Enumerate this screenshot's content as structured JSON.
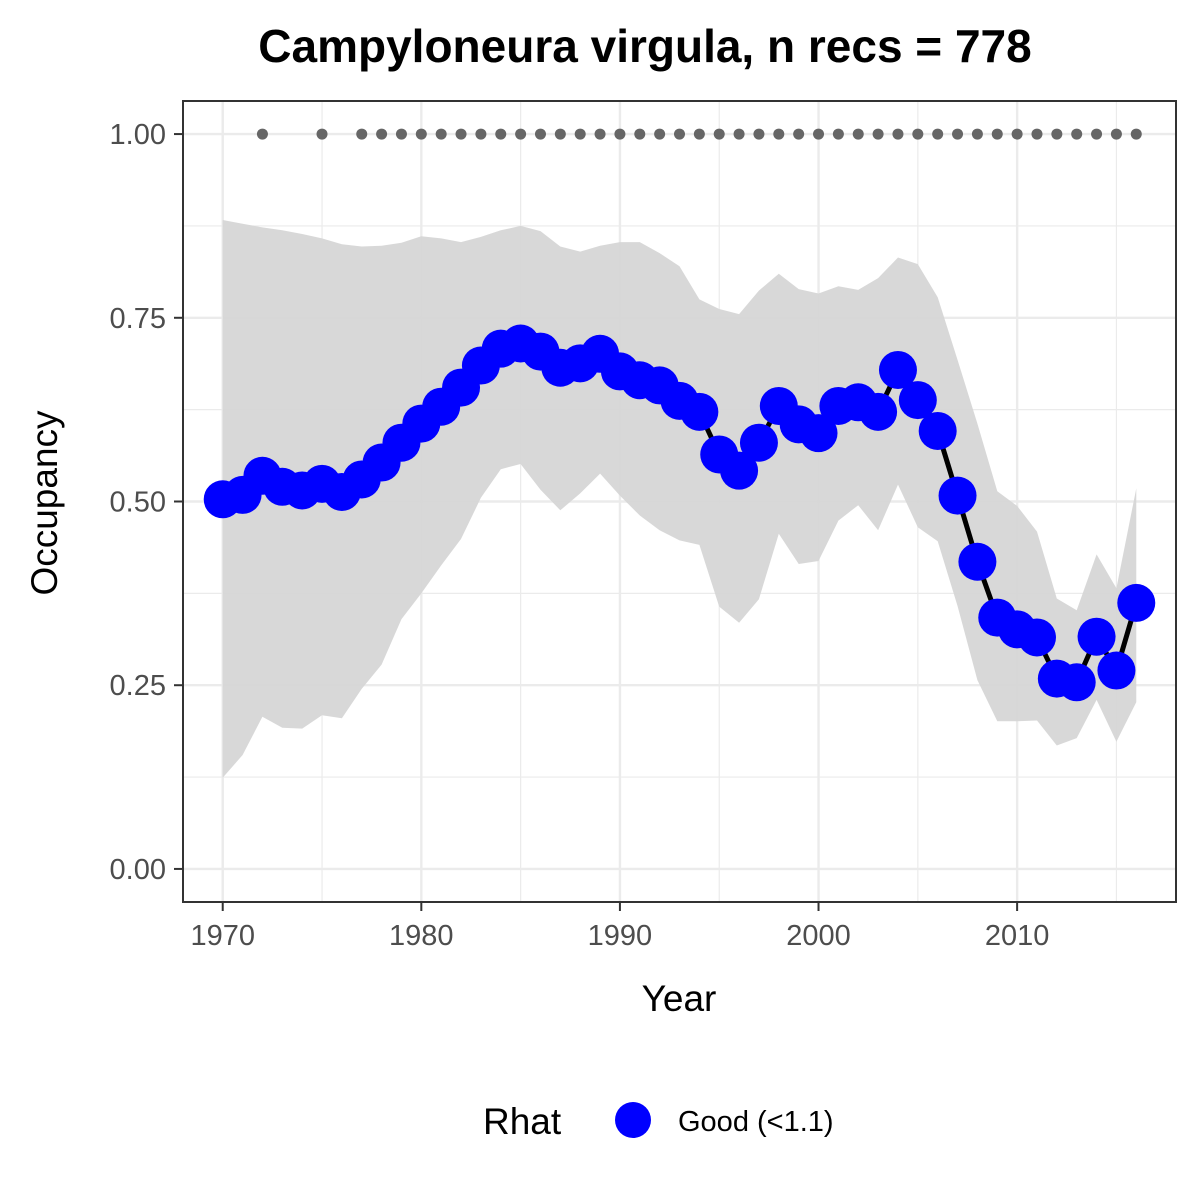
{
  "chart_data": {
    "type": "line",
    "title": "Campyloneura virgula, n recs = 778",
    "xlabel": "Year",
    "ylabel": "Occupancy",
    "xlim": [
      1968,
      2018
    ],
    "ylim": [
      -0.045,
      1.045
    ],
    "x_ticks": [
      1970,
      1980,
      1990,
      2000,
      2010
    ],
    "x_tick_labels": [
      "1970",
      "1980",
      "1990",
      "2000",
      "2010"
    ],
    "y_ticks": [
      0,
      0.25,
      0.5,
      0.75,
      1.0
    ],
    "y_tick_labels": [
      "0.00",
      "0.25",
      "0.50",
      "0.75",
      "1.00"
    ],
    "grid": true,
    "legend": {
      "title": "Rhat",
      "position": "bottom",
      "entries": [
        {
          "label": "Good (<1.1)",
          "color": "#0000ff"
        }
      ]
    },
    "colors": {
      "points": "#0000ff",
      "line": "#000000",
      "ribbon": "#d6d6d6",
      "record_dots": "#666666",
      "panel_border": "#333333",
      "grid": "#ebebeb"
    },
    "series": [
      {
        "x": [
          1970,
          1971,
          1972,
          1973,
          1974,
          1975,
          1976,
          1977,
          1978,
          1979,
          1980,
          1981,
          1982,
          1983,
          1984,
          1985,
          1986,
          1987,
          1988,
          1989,
          1990,
          1991,
          1992,
          1993,
          1994,
          1995,
          1996,
          1997,
          1998,
          1999,
          2000,
          2001,
          2002,
          2003,
          2004,
          2005,
          2006,
          2007,
          2008,
          2009,
          2010,
          2011,
          2012,
          2013,
          2014,
          2015,
          2016
        ],
        "values": [
          0.503,
          0.509,
          0.535,
          0.52,
          0.515,
          0.524,
          0.513,
          0.53,
          0.553,
          0.58,
          0.606,
          0.629,
          0.655,
          0.685,
          0.708,
          0.715,
          0.704,
          0.682,
          0.688,
          0.701,
          0.677,
          0.665,
          0.658,
          0.637,
          0.622,
          0.564,
          0.542,
          0.58,
          0.63,
          0.605,
          0.593,
          0.63,
          0.635,
          0.622,
          0.679,
          0.638,
          0.596,
          0.508,
          0.418,
          0.342,
          0.326,
          0.315,
          0.259,
          0.254,
          0.316,
          0.27,
          0.362
        ],
        "ci_lower": [
          0.124,
          0.155,
          0.207,
          0.192,
          0.191,
          0.209,
          0.205,
          0.245,
          0.278,
          0.34,
          0.375,
          0.413,
          0.449,
          0.505,
          0.544,
          0.551,
          0.516,
          0.488,
          0.511,
          0.538,
          0.508,
          0.481,
          0.461,
          0.447,
          0.441,
          0.357,
          0.335,
          0.367,
          0.456,
          0.415,
          0.419,
          0.474,
          0.495,
          0.461,
          0.523,
          0.465,
          0.446,
          0.358,
          0.257,
          0.201,
          0.201,
          0.202,
          0.168,
          0.178,
          0.23,
          0.173,
          0.227
        ],
        "ci_upper": [
          0.883,
          0.878,
          0.873,
          0.869,
          0.864,
          0.858,
          0.85,
          0.847,
          0.848,
          0.852,
          0.861,
          0.858,
          0.853,
          0.86,
          0.869,
          0.875,
          0.868,
          0.847,
          0.84,
          0.848,
          0.853,
          0.853,
          0.838,
          0.82,
          0.775,
          0.762,
          0.755,
          0.787,
          0.81,
          0.789,
          0.783,
          0.793,
          0.788,
          0.804,
          0.832,
          0.823,
          0.778,
          0.693,
          0.606,
          0.514,
          0.494,
          0.459,
          0.368,
          0.352,
          0.428,
          0.382,
          0.518
        ]
      }
    ],
    "record_years": [
      1972,
      1975,
      1977,
      1978,
      1979,
      1980,
      1981,
      1982,
      1983,
      1984,
      1985,
      1986,
      1987,
      1988,
      1989,
      1990,
      1991,
      1992,
      1993,
      1994,
      1995,
      1996,
      1997,
      1998,
      1999,
      2000,
      2001,
      2002,
      2003,
      2004,
      2005,
      2006,
      2007,
      2008,
      2009,
      2010,
      2011,
      2012,
      2013,
      2014,
      2015,
      2016
    ],
    "record_value": 1.0
  }
}
